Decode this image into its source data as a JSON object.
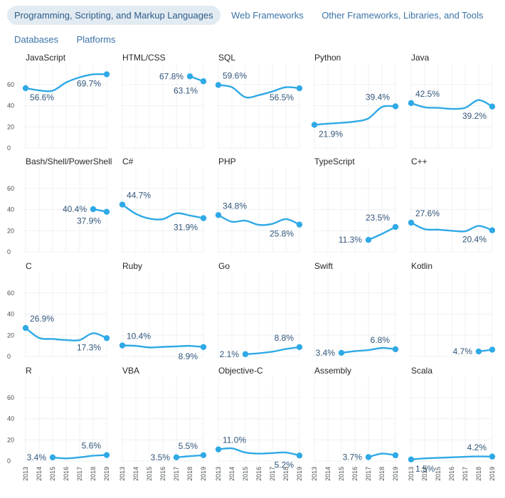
{
  "tabs": [
    {
      "label": "Programming, Scripting, and Markup Languages",
      "active": true
    },
    {
      "label": "Web Frameworks",
      "active": false
    },
    {
      "label": "Other Frameworks, Libraries, and Tools",
      "active": false
    },
    {
      "label": "Databases",
      "active": false
    },
    {
      "label": "Platforms",
      "active": false
    }
  ],
  "colors": {
    "line": "#2fa9e6",
    "tab_active_bg": "#e3ebf2",
    "tab_text": "#3b73a8",
    "grid": "#edf0f3"
  },
  "chart_data": {
    "type": "line",
    "x": [
      2013,
      2014,
      2015,
      2016,
      2017,
      2018,
      2019
    ],
    "ylim": [
      0,
      70
    ],
    "yticks": [
      0,
      20,
      40,
      60
    ],
    "panels": [
      {
        "title": "JavaScript",
        "values": [
          56.6,
          54.5,
          54.2,
          62.0,
          66.8,
          69.7,
          69.7
        ],
        "first_label": "56.6%",
        "last_label": "69.7%"
      },
      {
        "title": "HTML/CSS",
        "values": [
          null,
          null,
          null,
          null,
          null,
          67.8,
          63.1
        ],
        "first_label": "67.8%",
        "last_label": "63.1%"
      },
      {
        "title": "SQL",
        "values": [
          59.6,
          57.5,
          48.0,
          50.0,
          53.5,
          57.5,
          56.5
        ],
        "first_label": "59.6%",
        "last_label": "56.5%"
      },
      {
        "title": "Python",
        "values": [
          21.9,
          23.0,
          23.8,
          25.0,
          28.0,
          38.8,
          39.4
        ],
        "first_label": "21.9%",
        "last_label": "39.4%"
      },
      {
        "title": "Java",
        "values": [
          42.5,
          38.5,
          38.0,
          37.0,
          38.0,
          45.3,
          39.2
        ],
        "first_label": "42.5%",
        "last_label": "39.2%"
      },
      {
        "title": "Bash/Shell/PowerShell",
        "values": [
          null,
          null,
          null,
          null,
          null,
          40.4,
          37.9
        ],
        "first_label": "40.4%",
        "last_label": "37.9%"
      },
      {
        "title": "C#",
        "values": [
          44.7,
          36.0,
          31.5,
          31.0,
          36.5,
          34.4,
          31.9
        ],
        "first_label": "44.7%",
        "last_label": "31.9%"
      },
      {
        "title": "PHP",
        "values": [
          34.8,
          28.5,
          29.5,
          25.5,
          26.5,
          31.0,
          25.8
        ],
        "first_label": "34.8%",
        "last_label": "25.8%"
      },
      {
        "title": "TypeScript",
        "values": [
          null,
          null,
          null,
          null,
          11.3,
          17.0,
          23.5
        ],
        "first_label": "11.3%",
        "last_label": "23.5%"
      },
      {
        "title": "C++",
        "values": [
          27.6,
          21.5,
          21.0,
          20.0,
          19.5,
          24.5,
          20.4
        ],
        "first_label": "27.6%",
        "last_label": "20.4%"
      },
      {
        "title": "C",
        "values": [
          26.9,
          17.5,
          16.5,
          15.5,
          15.5,
          22.0,
          17.3
        ],
        "first_label": "26.9%",
        "last_label": "17.3%"
      },
      {
        "title": "Ruby",
        "values": [
          10.4,
          10.0,
          8.5,
          9.0,
          9.5,
          10.0,
          8.9
        ],
        "first_label": "10.4%",
        "last_label": "8.9%"
      },
      {
        "title": "Go",
        "values": [
          null,
          null,
          2.1,
          3.0,
          4.5,
          7.0,
          8.8
        ],
        "first_label": "2.1%",
        "last_label": "8.8%"
      },
      {
        "title": "Swift",
        "values": [
          null,
          null,
          3.4,
          5.0,
          6.0,
          8.0,
          6.8
        ],
        "first_label": "3.4%",
        "last_label": "6.8%"
      },
      {
        "title": "Kotlin",
        "values": [
          null,
          null,
          null,
          null,
          null,
          4.7,
          6.4
        ],
        "first_label": "4.7%",
        "last_label": null
      },
      {
        "title": "R",
        "values": [
          null,
          null,
          3.4,
          2.5,
          3.5,
          5.0,
          5.6
        ],
        "first_label": "3.4%",
        "last_label": "5.6%"
      },
      {
        "title": "VBA",
        "values": [
          null,
          null,
          null,
          null,
          3.5,
          4.6,
          5.5
        ],
        "first_label": "3.5%",
        "last_label": "5.5%"
      },
      {
        "title": "Objective-C",
        "values": [
          11.0,
          12.0,
          8.0,
          7.0,
          7.5,
          8.0,
          5.2
        ],
        "first_label": "11.0%",
        "last_label": "5.2%"
      },
      {
        "title": "Assembly",
        "values": [
          null,
          null,
          null,
          null,
          3.7,
          7.0,
          5.4
        ],
        "first_label": "3.7%",
        "last_label": null
      },
      {
        "title": "Scala",
        "values": [
          1.5,
          2.5,
          3.0,
          3.5,
          4.0,
          4.3,
          4.2
        ],
        "first_label": "1.5%",
        "last_label": "4.2%"
      }
    ]
  }
}
